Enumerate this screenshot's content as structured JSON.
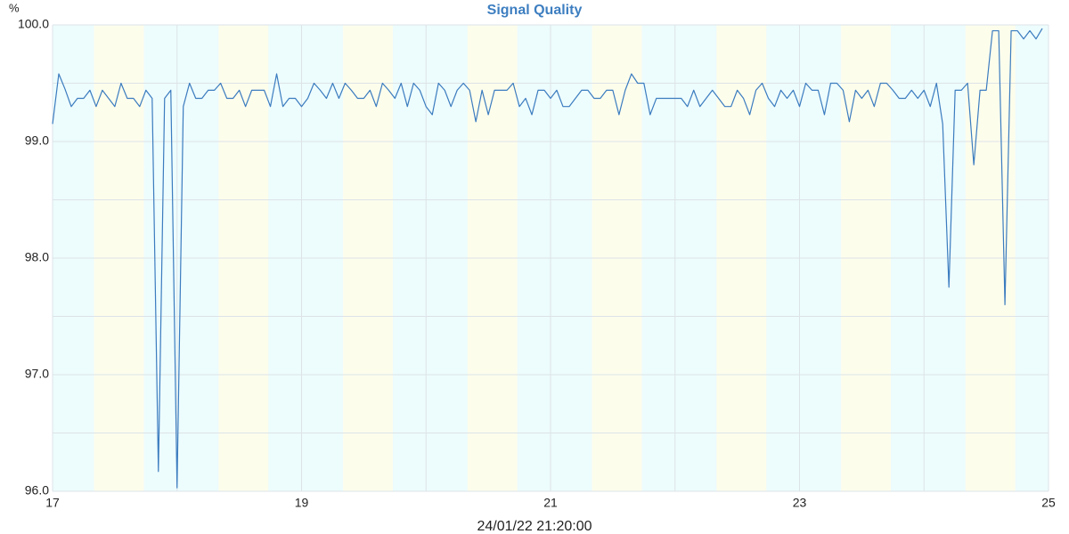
{
  "chart_data": {
    "type": "line",
    "title": "Signal Quality",
    "y_unit": "%",
    "x_label": "24/01/22 21:20:00",
    "x": [
      17.0,
      17.05,
      17.1,
      17.15,
      17.2,
      17.25,
      17.3,
      17.35,
      17.4,
      17.45,
      17.5,
      17.55,
      17.6,
      17.65,
      17.7,
      17.75,
      17.8,
      17.85,
      17.9,
      17.95,
      18.0,
      18.05,
      18.1,
      18.15,
      18.2,
      18.25,
      18.3,
      18.35,
      18.4,
      18.45,
      18.5,
      18.55,
      18.6,
      18.65,
      18.7,
      18.75,
      18.8,
      18.85,
      18.9,
      18.95,
      19.0,
      19.05,
      19.1,
      19.15,
      19.2,
      19.25,
      19.3,
      19.35,
      19.4,
      19.45,
      19.5,
      19.55,
      19.6,
      19.65,
      19.7,
      19.75,
      19.8,
      19.85,
      19.9,
      19.95,
      20.0,
      20.05,
      20.1,
      20.15,
      20.2,
      20.25,
      20.3,
      20.35,
      20.4,
      20.45,
      20.5,
      20.55,
      20.6,
      20.65,
      20.7,
      20.75,
      20.8,
      20.85,
      20.9,
      20.95,
      21.0,
      21.05,
      21.1,
      21.15,
      21.2,
      21.25,
      21.3,
      21.35,
      21.4,
      21.45,
      21.5,
      21.55,
      21.6,
      21.65,
      21.7,
      21.75,
      21.8,
      21.85,
      21.9,
      21.95,
      22.0,
      22.05,
      22.1,
      22.15,
      22.2,
      22.25,
      22.3,
      22.35,
      22.4,
      22.45,
      22.5,
      22.55,
      22.6,
      22.65,
      22.7,
      22.75,
      22.8,
      22.85,
      22.9,
      22.95,
      23.0,
      23.05,
      23.1,
      23.15,
      23.2,
      23.25,
      23.3,
      23.35,
      23.4,
      23.45,
      23.5,
      23.55,
      23.6,
      23.65,
      23.7,
      23.75,
      23.8,
      23.85,
      23.9,
      23.95,
      24.0,
      24.05,
      24.1,
      24.15,
      24.2,
      24.25,
      24.3,
      24.35,
      24.4,
      24.45,
      24.5,
      24.55,
      24.6,
      24.65,
      24.7,
      24.75,
      24.8,
      24.85,
      24.9,
      24.95
    ],
    "series": [
      {
        "name": "Signal Quality",
        "color": "#3b7cbf",
        "values": [
          99.15,
          99.58,
          99.45,
          99.3,
          99.37,
          99.37,
          99.44,
          99.3,
          99.44,
          99.37,
          99.3,
          99.5,
          99.37,
          99.37,
          99.3,
          99.44,
          99.37,
          96.17,
          99.37,
          99.44,
          96.03,
          99.3,
          99.5,
          99.37,
          99.37,
          99.44,
          99.44,
          99.5,
          99.37,
          99.37,
          99.44,
          99.3,
          99.44,
          99.44,
          99.44,
          99.3,
          99.58,
          99.3,
          99.37,
          99.37,
          99.3,
          99.37,
          99.5,
          99.44,
          99.37,
          99.5,
          99.37,
          99.5,
          99.44,
          99.37,
          99.37,
          99.44,
          99.3,
          99.5,
          99.44,
          99.37,
          99.5,
          99.3,
          99.5,
          99.44,
          99.3,
          99.23,
          99.5,
          99.44,
          99.3,
          99.44,
          99.5,
          99.44,
          99.17,
          99.44,
          99.23,
          99.44,
          99.44,
          99.44,
          99.5,
          99.3,
          99.37,
          99.23,
          99.44,
          99.44,
          99.37,
          99.44,
          99.3,
          99.3,
          99.37,
          99.44,
          99.44,
          99.37,
          99.37,
          99.44,
          99.44,
          99.23,
          99.44,
          99.58,
          99.5,
          99.5,
          99.23,
          99.37,
          99.37,
          99.37,
          99.37,
          99.37,
          99.3,
          99.44,
          99.3,
          99.37,
          99.44,
          99.37,
          99.3,
          99.3,
          99.44,
          99.37,
          99.23,
          99.44,
          99.5,
          99.37,
          99.3,
          99.44,
          99.37,
          99.44,
          99.3,
          99.5,
          99.44,
          99.44,
          99.23,
          99.5,
          99.5,
          99.44,
          99.17,
          99.44,
          99.37,
          99.44,
          99.3,
          99.5,
          99.5,
          99.44,
          99.37,
          99.37,
          99.44,
          99.37,
          99.44,
          99.3,
          99.5,
          99.15,
          97.75,
          99.44,
          99.44,
          99.5,
          98.8,
          99.44,
          99.44,
          99.95,
          99.95,
          97.6,
          99.95,
          99.95,
          99.88,
          99.95,
          99.88,
          99.97
        ]
      }
    ],
    "xlim": [
      17,
      25
    ],
    "xticks": [
      17,
      19,
      21,
      23,
      25
    ],
    "ylim": [
      96,
      100
    ],
    "yticks": [
      {
        "value": 96,
        "label": "96.0"
      },
      {
        "value": 97,
        "label": "97.0"
      },
      {
        "value": 98,
        "label": "98.0"
      },
      {
        "value": 99,
        "label": "99.0"
      },
      {
        "value": 100,
        "label": "100.0"
      }
    ],
    "grid": true
  }
}
